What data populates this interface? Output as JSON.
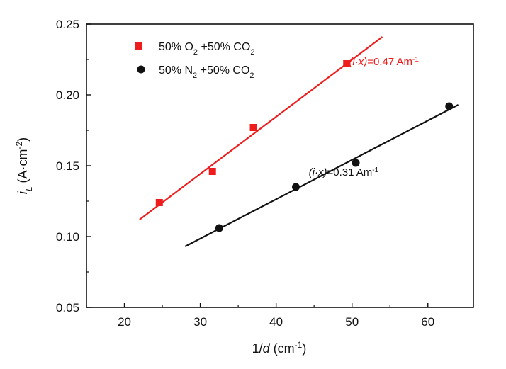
{
  "chart_data": {
    "type": "scatter",
    "title": "",
    "xlabel": "1/d (cm⁻¹)",
    "xlabel_parts": {
      "pre": "1/",
      "var": "d",
      "unit": " (cm",
      "sup": "-1",
      "close": ")"
    },
    "ylabel": "i_L (A·cm⁻²)",
    "ylabel_parts": {
      "var": "i",
      "sub": "L",
      "unit": " (A·cm",
      "sup": "-2",
      "close": ")"
    },
    "xlim": [
      15,
      66
    ],
    "ylim": [
      0.05,
      0.25
    ],
    "xticks": [
      20,
      30,
      40,
      50,
      60
    ],
    "xtick_labels": [
      "20",
      "30",
      "40",
      "50",
      "60"
    ],
    "yticks": [
      0.05,
      0.1,
      0.15,
      0.2,
      0.25
    ],
    "ytick_labels": [
      "0.05",
      "0.10",
      "0.15",
      "0.20",
      "0.25"
    ],
    "grid": false,
    "legend_position": "top-left",
    "series": [
      {
        "name": "50% O2 +50% CO2",
        "label_parts": {
          "a": "50% O",
          "sub1": "2",
          "b": " +50% CO",
          "sub2": "2"
        },
        "marker": "square",
        "color": "#ee1c1c",
        "x": [
          24.6,
          31.6,
          37.0,
          49.3
        ],
        "y": [
          0.124,
          0.146,
          0.177,
          0.222
        ],
        "fit": {
          "x": [
            22,
            54
          ],
          "y": [
            0.112,
            0.241
          ]
        },
        "annotation": {
          "var": "(i·x)",
          "rest": "=0.47 Am",
          "sup": "-1",
          "at": [
            49.6,
            0.221
          ]
        }
      },
      {
        "name": "50% N2 +50% CO2",
        "label_parts": {
          "a": "50% N",
          "sub1": "2",
          "b": " +50% CO",
          "sub2": "2"
        },
        "marker": "circle",
        "color": "#111111",
        "x": [
          32.5,
          42.6,
          50.5,
          62.8
        ],
        "y": [
          0.106,
          0.135,
          0.152,
          0.192
        ],
        "fit": {
          "x": [
            28,
            64
          ],
          "y": [
            0.093,
            0.193
          ]
        },
        "annotation": {
          "var": "(i·x)",
          "rest": "=0.31 Am",
          "sup": "-1",
          "at": [
            44.3,
            0.143
          ]
        }
      }
    ]
  }
}
